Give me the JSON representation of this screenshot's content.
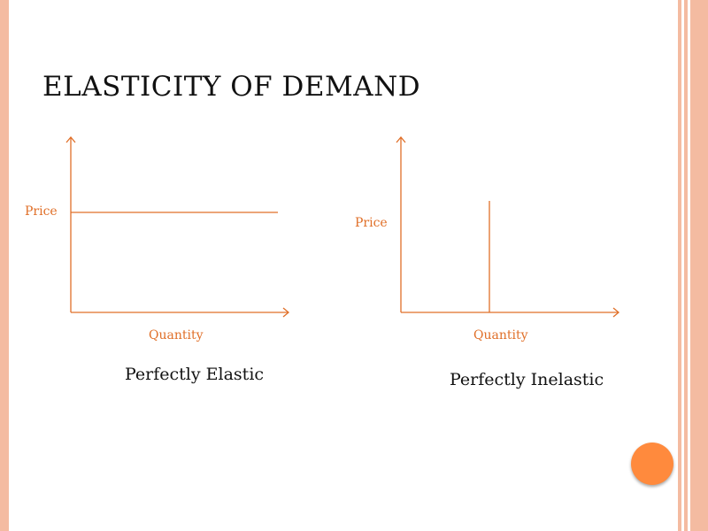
{
  "slide": {
    "title": "ELASTICITY OF DEMAND"
  },
  "colors": {
    "accent": "#e06f28",
    "stripe": "#f4bba1",
    "circle": "#ff8a3d",
    "text": "#111111"
  },
  "diagrams": [
    {
      "ylabel": "Price",
      "xlabel": "Quantity",
      "curve": "horizontal",
      "caption": "Perfectly Elastic"
    },
    {
      "ylabel": "Price",
      "xlabel": "Quantity",
      "curve": "vertical",
      "caption": "Perfectly Inelastic"
    }
  ]
}
